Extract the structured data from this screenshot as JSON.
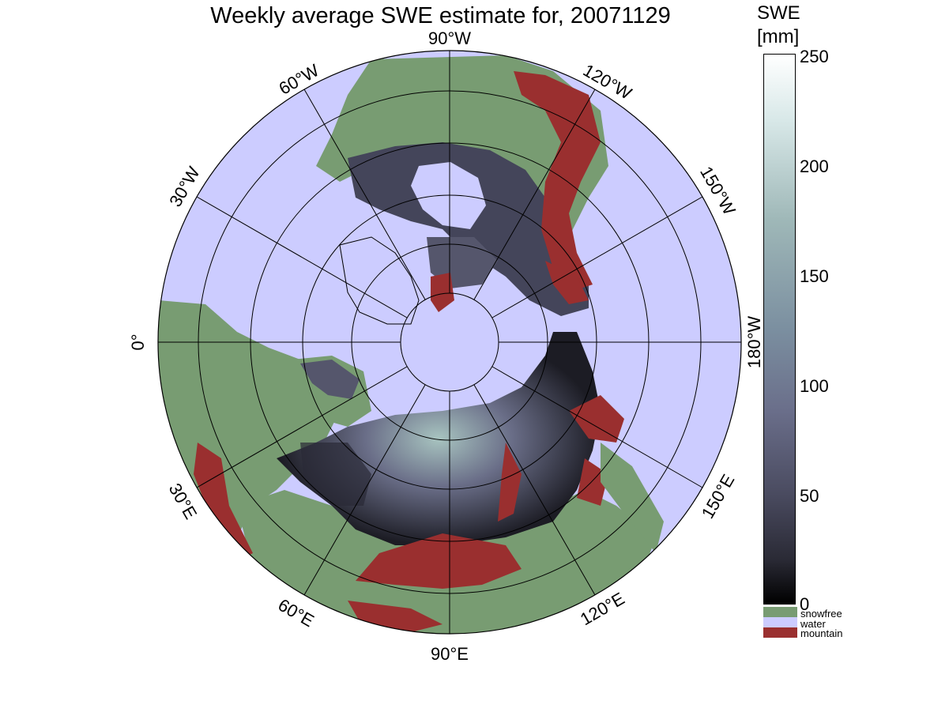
{
  "title": "Weekly average SWE estimate for, 20071129",
  "colorbar": {
    "label_line1": "SWE",
    "label_line2": "[mm]",
    "ticks": [
      "250",
      "200",
      "150",
      "100",
      "50",
      "0"
    ],
    "range": [
      0,
      250
    ]
  },
  "legend": {
    "items": [
      {
        "label": "snowfree",
        "color": "#789c72"
      },
      {
        "label": "water",
        "color": "#ccccff"
      },
      {
        "label": "mountain",
        "color": "#9a2f2f"
      }
    ]
  },
  "longitude_labels": {
    "lon_90W": "90°W",
    "lon_120W": "120°W",
    "lon_150W": "150°W",
    "lon_180W": "180°W",
    "lon_150E": "150°E",
    "lon_120E": "120°E",
    "lon_90E": "90°E",
    "lon_60E": "60°E",
    "lon_30E": "30°E",
    "lon_0": "0°",
    "lon_30W": "30°W",
    "lon_60W": "60°W"
  },
  "colors": {
    "water": "#ccccff",
    "snowfree": "#789c72",
    "mountain": "#9a2f2f",
    "snow_low": "#1a1a22",
    "snow_mid": "#55556e",
    "snow_high": "#a8c4c0"
  }
}
